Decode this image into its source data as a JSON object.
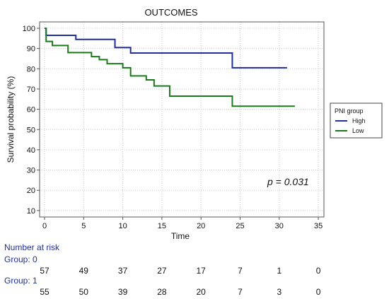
{
  "chart_data": {
    "type": "line",
    "subtype": "kaplan-meier",
    "title": "OUTCOMES",
    "xlabel": "Time",
    "ylabel": "Survival probability (%)",
    "xlim": [
      0,
      35
    ],
    "ylim": [
      10,
      100
    ],
    "xticks": [
      0,
      5,
      10,
      15,
      20,
      25,
      30,
      35
    ],
    "yticks": [
      10,
      20,
      30,
      40,
      50,
      60,
      70,
      80,
      90,
      100
    ],
    "grid": true,
    "legend": {
      "title": "PNI group",
      "position": "right"
    },
    "annotation": "p = 0.031",
    "series": [
      {
        "name": "High",
        "color": "#1f2f9e",
        "steps": [
          [
            0,
            100
          ],
          [
            0.2,
            96.5
          ],
          [
            4,
            94.5
          ],
          [
            9,
            90.5
          ],
          [
            11,
            87.8
          ],
          [
            24,
            80.5
          ],
          [
            31,
            80.5
          ]
        ]
      },
      {
        "name": "Low",
        "color": "#1a7a1a",
        "steps": [
          [
            0,
            100
          ],
          [
            0.2,
            93.5
          ],
          [
            1,
            91.5
          ],
          [
            3,
            88
          ],
          [
            6,
            86
          ],
          [
            7,
            84.5
          ],
          [
            8,
            82.5
          ],
          [
            10,
            80.5
          ],
          [
            11,
            76.5
          ],
          [
            13,
            74.5
          ],
          [
            14,
            71.5
          ],
          [
            16,
            66.5
          ],
          [
            24,
            61.5
          ],
          [
            32,
            61.5
          ]
        ]
      }
    ],
    "risk_table": {
      "heading": "Number at risk",
      "times": [
        0,
        5,
        10,
        15,
        20,
        25,
        30,
        35
      ],
      "groups": [
        {
          "label": "Group: 0",
          "values": [
            "57",
            "49",
            "37",
            "27",
            "17",
            "7",
            "1",
            "0"
          ]
        },
        {
          "label": "Group: 1",
          "values": [
            "55",
            "50",
            "39",
            "28",
            "20",
            "7",
            "3",
            "0"
          ]
        }
      ]
    }
  }
}
